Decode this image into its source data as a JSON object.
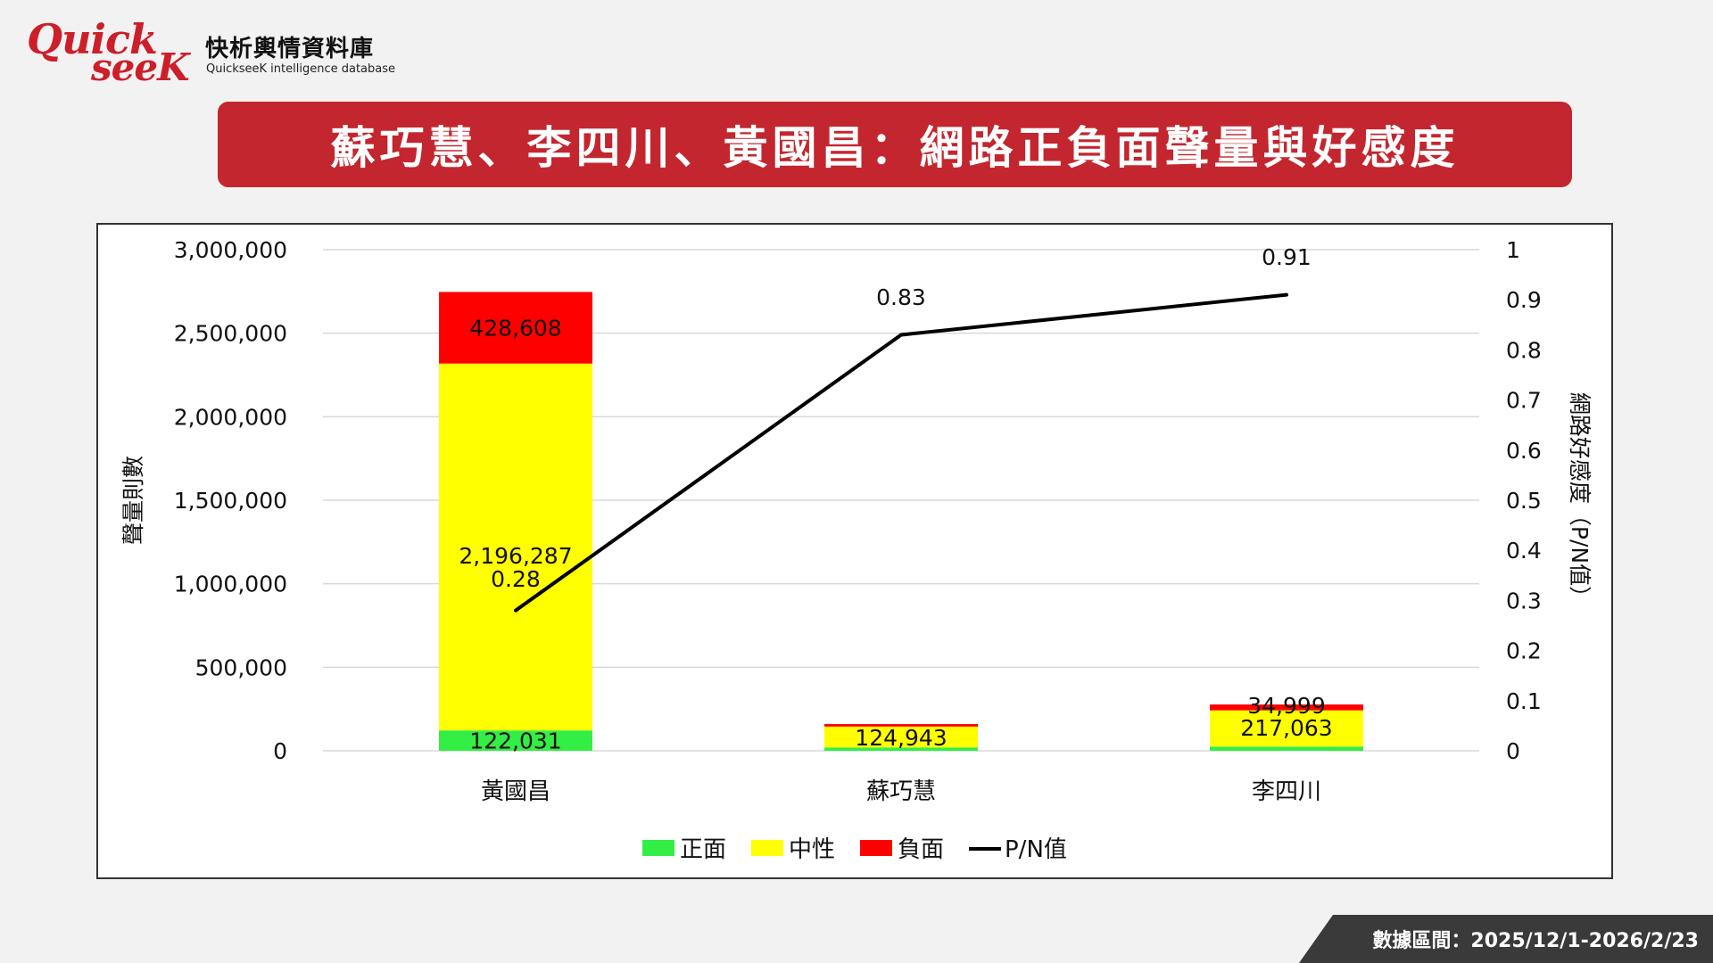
{
  "logo": {
    "brand_line1": "Quick",
    "brand_line2": "seeK",
    "name_cn": "快析輿情資料庫",
    "name_en": "QuickseeK intelligence database",
    "color": "#cc1f2a"
  },
  "title": "蘇巧慧、李四川、黃國昌：網路正負面聲量與好感度",
  "footer": "數據區間：2025/12/1-2026/2/23",
  "chart_data": {
    "type": "bar",
    "stacked": true,
    "categories": [
      "黃國昌",
      "蘇巧慧",
      "李四川"
    ],
    "series": [
      {
        "name": "正面",
        "color": "#33ee44",
        "values": [
          122031,
          20000,
          25000
        ],
        "labels": [
          "122,031",
          "",
          ""
        ]
      },
      {
        "name": "中性",
        "color": "#ffff00",
        "values": [
          2196287,
          124943,
          217063
        ],
        "labels": [
          "2,196,287",
          "124,943",
          "217,063"
        ]
      },
      {
        "name": "負面",
        "color": "#ff0000",
        "values": [
          428608,
          15000,
          34999
        ],
        "labels": [
          "428,608",
          "",
          "34,999"
        ]
      }
    ],
    "line_series": {
      "name": "P/N值",
      "color": "#000000",
      "values": [
        0.28,
        0.83,
        0.91
      ],
      "labels": [
        "0.28",
        "0.83",
        "0.91"
      ]
    },
    "ylabel": "聲量則數",
    "y2label": "網路好感度（P/N值）",
    "ylim": [
      0,
      3000000
    ],
    "yticks": [
      "3,000,000",
      "2,500,000",
      "2,000,000",
      "1,500,000",
      "1,000,000",
      "500,000",
      "0"
    ],
    "y2lim": [
      0,
      1
    ],
    "y2ticks": [
      "1",
      "0.9",
      "0.8",
      "0.7",
      "0.6",
      "0.5",
      "0.4",
      "0.3",
      "0.2",
      "0.1",
      "0"
    ],
    "grid": true,
    "legend_position": "bottom"
  }
}
